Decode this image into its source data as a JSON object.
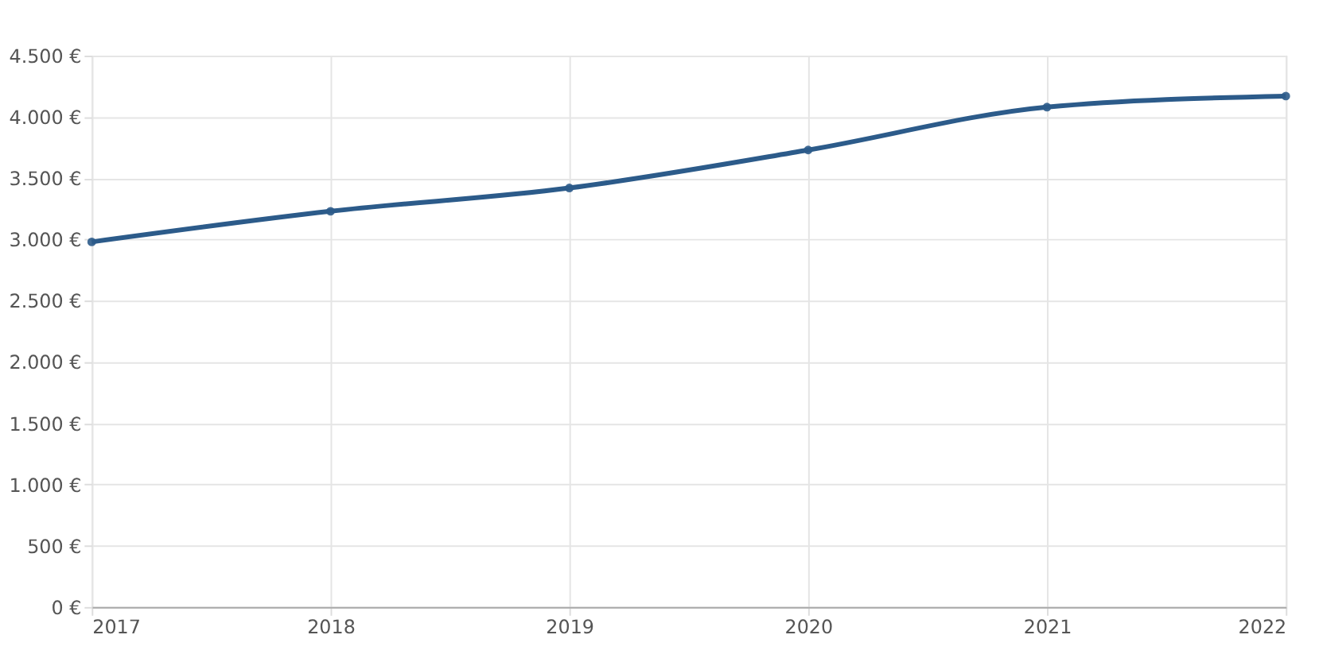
{
  "chart_data": {
    "type": "line",
    "categories": [
      "2017",
      "2018",
      "2019",
      "2020",
      "2021",
      "2022"
    ],
    "series": [
      {
        "color": "#2c5b8a",
        "values": [
          2980,
          3230,
          3420,
          3730,
          4080,
          4170
        ]
      }
    ],
    "ylim": [
      0,
      4500
    ],
    "yticks": [
      {
        "value": 0,
        "label": "0 €"
      },
      {
        "value": 500,
        "label": "500 €"
      },
      {
        "value": 1000,
        "label": "1.000 €"
      },
      {
        "value": 1500,
        "label": "1.500 €"
      },
      {
        "value": 2000,
        "label": "2.000 €"
      },
      {
        "value": 2500,
        "label": "2.500 €"
      },
      {
        "value": 3000,
        "label": "3.000 €"
      },
      {
        "value": 3500,
        "label": "3.500 €"
      },
      {
        "value": 4000,
        "label": "4.000 €"
      },
      {
        "value": 4500,
        "label": "4.500 €"
      }
    ],
    "grid": true,
    "marker": "circle",
    "line_style": "solid"
  }
}
